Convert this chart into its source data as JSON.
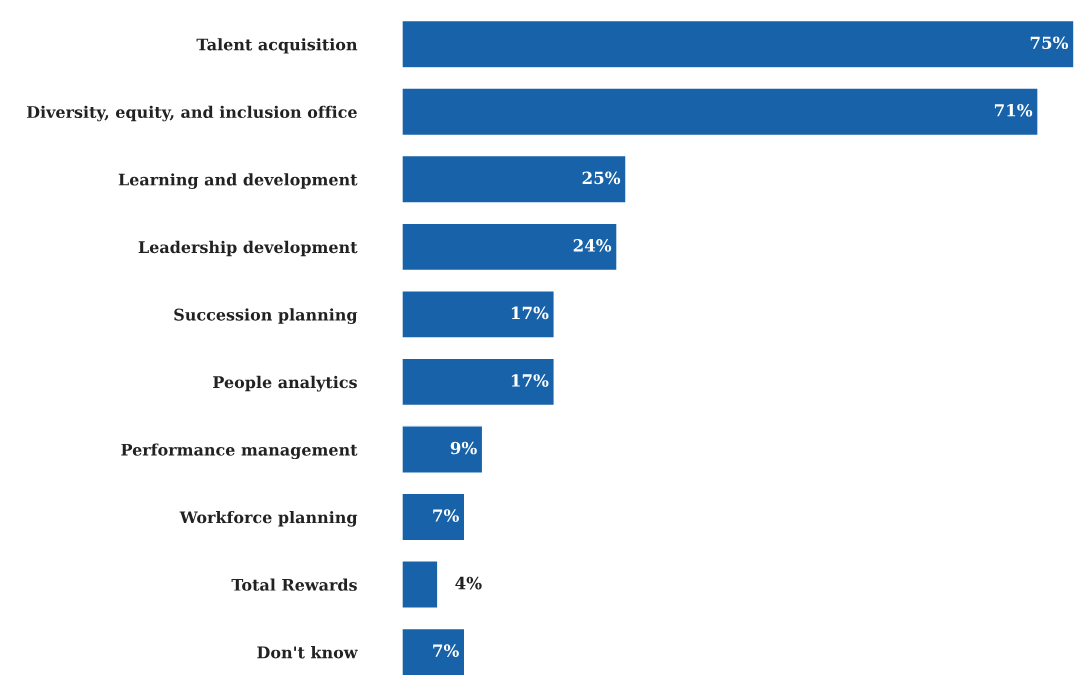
{
  "chart_data": {
    "type": "bar",
    "orientation": "horizontal",
    "categories": [
      "Talent acquisition",
      "Diversity, equity, and inclusion office",
      "Learning and development",
      "Leadership development",
      "Succession planning",
      "People analytics",
      "Performance management",
      "Workforce planning",
      "Total Rewards",
      "Don't know"
    ],
    "values": [
      75,
      71,
      25,
      24,
      17,
      17,
      9,
      7,
      4,
      7
    ],
    "value_labels": [
      "75%",
      "71%",
      "25%",
      "24%",
      "17%",
      "17%",
      "9%",
      "7%",
      "4%",
      "7%"
    ],
    "color": "#1762a8",
    "grid": false
  }
}
